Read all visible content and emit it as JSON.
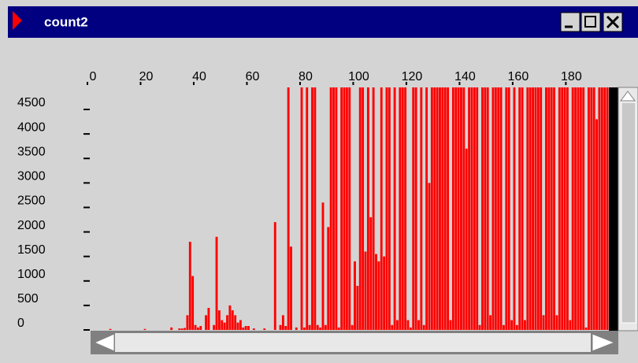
{
  "window": {
    "title": "count2"
  },
  "chart_data": {
    "type": "bar",
    "color": "#ff0000",
    "xlim": [
      0,
      195
    ],
    "xticks": [
      0,
      20,
      40,
      60,
      80,
      100,
      120,
      140,
      160,
      180
    ],
    "ylim": [
      0,
      4950
    ],
    "yticks": [
      0,
      500,
      1000,
      1500,
      2000,
      2500,
      3000,
      3500,
      4000,
      4500
    ],
    "x": [
      0,
      1,
      2,
      3,
      4,
      5,
      6,
      7,
      8,
      9,
      10,
      11,
      12,
      13,
      14,
      15,
      16,
      17,
      18,
      19,
      20,
      21,
      22,
      23,
      24,
      25,
      26,
      27,
      28,
      29,
      30,
      31,
      32,
      33,
      34,
      35,
      36,
      37,
      38,
      39,
      40,
      41,
      42,
      43,
      44,
      45,
      46,
      47,
      48,
      49,
      50,
      51,
      52,
      53,
      54,
      55,
      56,
      57,
      58,
      59,
      60,
      61,
      62,
      63,
      64,
      65,
      66,
      67,
      68,
      69,
      70,
      71,
      72,
      73,
      74,
      75,
      76,
      77,
      78,
      79,
      80,
      81,
      82,
      83,
      84,
      85,
      86,
      87,
      88,
      89,
      90,
      91,
      92,
      93,
      94,
      95,
      96,
      97,
      98,
      99,
      100,
      101,
      102,
      103,
      104,
      105,
      106,
      107,
      108,
      109,
      110,
      111,
      112,
      113,
      114,
      115,
      116,
      117,
      118,
      119,
      120,
      121,
      122,
      123,
      124,
      125,
      126,
      127,
      128,
      129,
      130,
      131,
      132,
      133,
      134,
      135,
      136,
      137,
      138,
      139,
      140,
      141,
      142,
      143,
      144,
      145,
      146,
      147,
      148,
      149,
      150,
      151,
      152,
      153,
      154,
      155,
      156,
      157,
      158,
      159,
      160,
      161,
      162,
      163,
      164,
      165,
      166,
      167,
      168,
      169,
      170,
      171,
      172,
      173,
      174,
      175,
      176,
      177,
      178,
      179,
      180,
      181,
      182,
      183,
      184,
      185,
      186,
      187,
      188,
      189,
      190,
      191,
      192,
      193,
      194
    ],
    "values": [
      0,
      0,
      0,
      0,
      0,
      0,
      0,
      20,
      0,
      0,
      0,
      0,
      0,
      0,
      0,
      0,
      0,
      0,
      0,
      0,
      20,
      0,
      0,
      0,
      0,
      0,
      0,
      0,
      0,
      0,
      50,
      0,
      0,
      30,
      30,
      40,
      300,
      1800,
      1100,
      100,
      50,
      80,
      0,
      300,
      450,
      0,
      100,
      1900,
      400,
      200,
      150,
      300,
      500,
      400,
      300,
      150,
      200,
      50,
      80,
      80,
      0,
      30,
      0,
      0,
      0,
      30,
      0,
      0,
      0,
      2200,
      0,
      100,
      300,
      80,
      4950,
      1700,
      0,
      50,
      0,
      4950,
      50,
      4950,
      100,
      4950,
      4950,
      100,
      50,
      2600,
      100,
      2100,
      4950,
      4950,
      4950,
      50,
      4950,
      4950,
      4950,
      4950,
      100,
      1400,
      900,
      4950,
      4950,
      1600,
      4950,
      2300,
      4950,
      1550,
      1400,
      4950,
      1500,
      4950,
      4950,
      100,
      4950,
      200,
      4950,
      4950,
      4950,
      200,
      50,
      4950,
      4950,
      200,
      4950,
      100,
      4950,
      3000,
      4950,
      4950,
      4950,
      4950,
      4950,
      4950,
      4950,
      200,
      4950,
      4950,
      4950,
      4950,
      4950,
      3700,
      4950,
      4950,
      4950,
      4950,
      100,
      4950,
      4950,
      4950,
      300,
      4950,
      4950,
      4950,
      4950,
      100,
      4950,
      4950,
      200,
      4950,
      100,
      4950,
      4950,
      200,
      4950,
      4950,
      4950,
      4950,
      4950,
      4950,
      300,
      4950,
      4950,
      4950,
      4950,
      300,
      4950,
      4950,
      4950,
      4950,
      200,
      4950,
      4950,
      4950,
      4950,
      4950,
      50,
      4950,
      4950,
      4950,
      4300,
      4950,
      4950,
      4950,
      4950
    ]
  }
}
